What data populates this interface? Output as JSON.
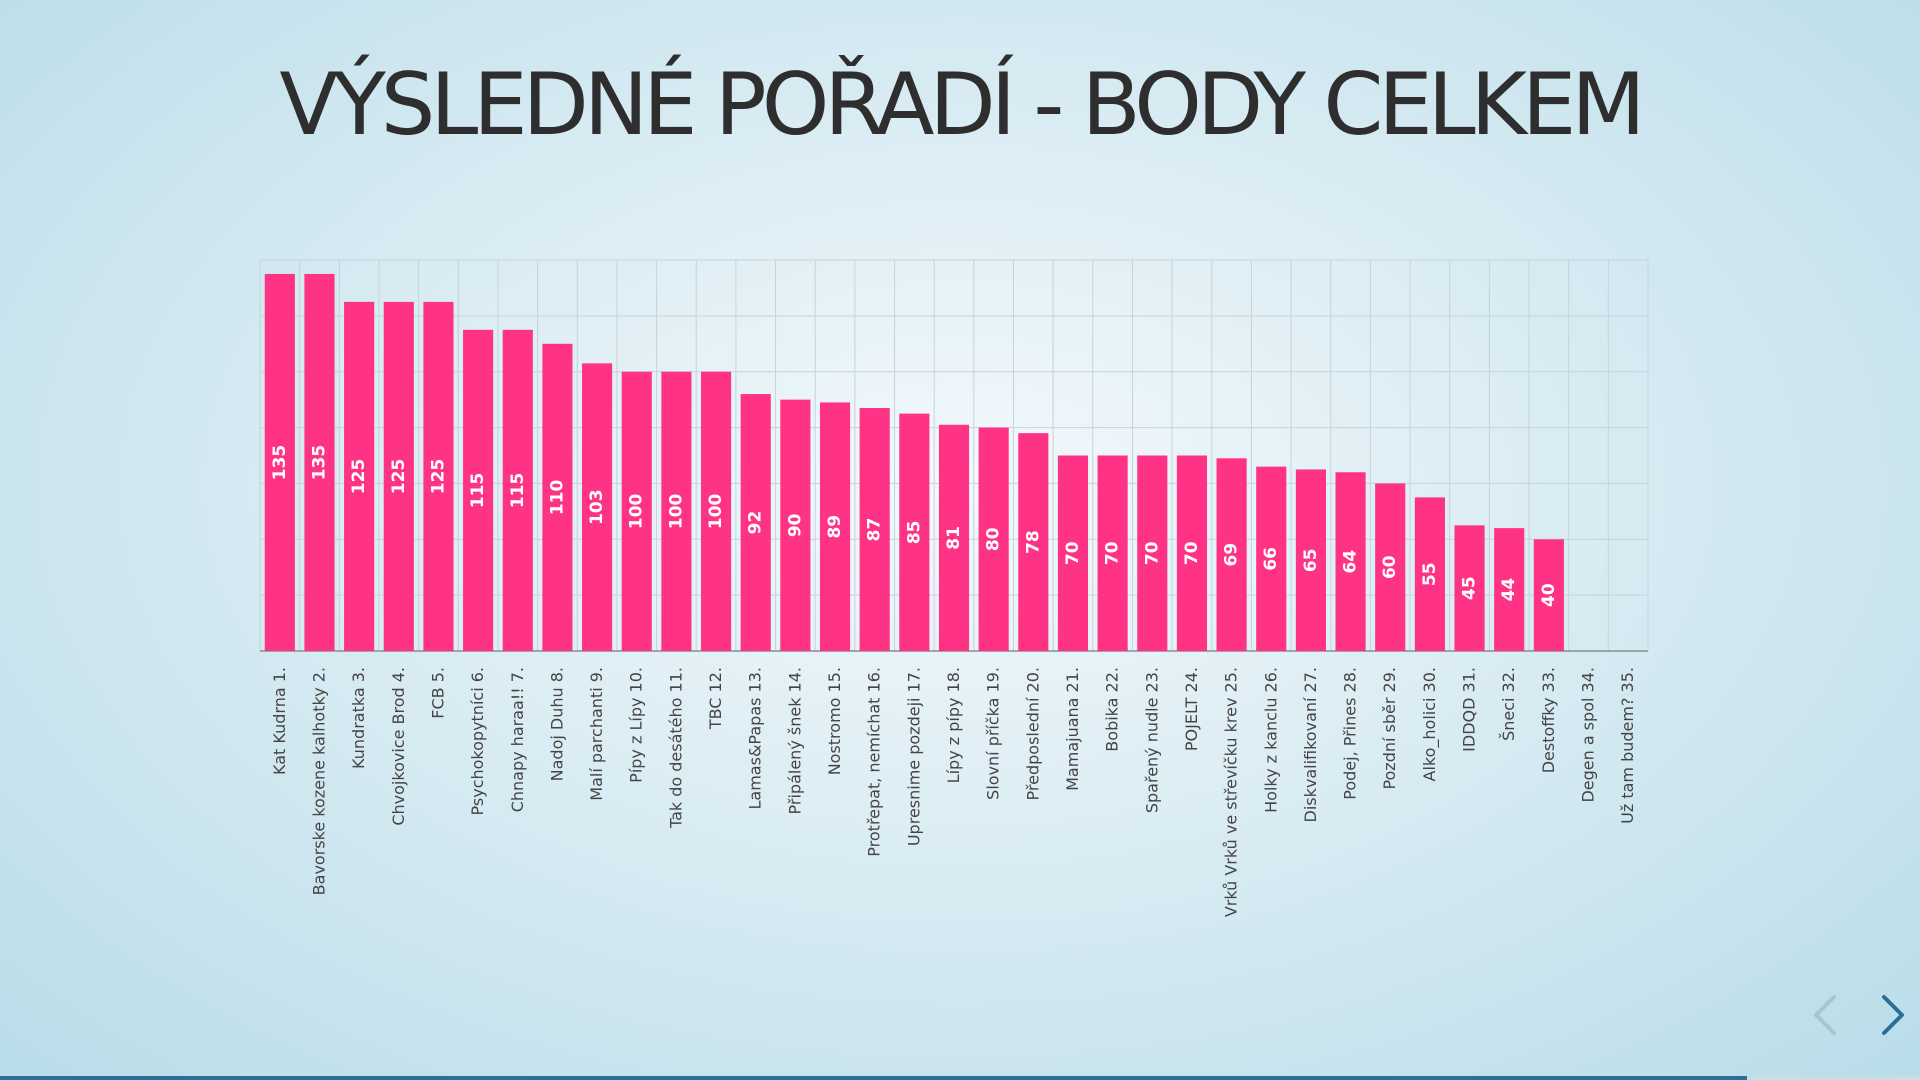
{
  "slide": {
    "title": "VÝSLEDNÉ POŘADÍ - BODY CELKEM",
    "progress": 0.91
  },
  "navigation": {
    "prev_icon": "chevron-left-icon",
    "next_icon": "chevron-right-icon"
  },
  "colors": {
    "bar": "#ff3385",
    "prev_arrow": "#a9c4d4",
    "next_arrow": "#2a6f97"
  },
  "chart_data": {
    "type": "bar",
    "title": "",
    "xlabel": "",
    "ylabel": "",
    "ylim": [
      0,
      140
    ],
    "grid": true,
    "legend": "none",
    "categories": [
      "Kat Kudrna 1.",
      "Bavorske kozene kalhotky 2.",
      "Kundratka 3.",
      "Chvojkovice Brod 4.",
      "FCB 5.",
      "Psychokopytníci 6.",
      "Chnapy haraa!! 7.",
      "Nadoj Duhu 8.",
      "Malí parchanti 9.",
      "Pípy z Lípy 10.",
      "Tak do desátého 11.",
      "TBC 12.",
      "Lamas&Papas 13.",
      "Připálený šnek 14.",
      "Nostromo 15.",
      "Protřepat, nemíchat 16.",
      "Upresnime pozdeji 17.",
      "Lípy z pípy 18.",
      "Slovní příčka 19.",
      "Předposlední 20.",
      "Mamajuana 21.",
      "Bobika 22.",
      "Spařený nudle 23.",
      "POJELT 24.",
      "Vrků Vrků ve střevíčku krev 25.",
      "Holky z kanclu 26.",
      "Diskvalifikovaní 27.",
      "Podej, Přines 28.",
      "Pozdní sběr 29.",
      "Alko_holici 30.",
      "IDDQD 31.",
      "Šneci 32.",
      "Destoffky 33.",
      "Degen a spol 34.",
      "Už tam budem? 35."
    ],
    "values": [
      135,
      135,
      125,
      125,
      125,
      115,
      115,
      110,
      103,
      100,
      100,
      100,
      92,
      90,
      89,
      87,
      85,
      81,
      80,
      78,
      70,
      70,
      70,
      70,
      69,
      66,
      65,
      64,
      60,
      55,
      45,
      44,
      40,
      null,
      null
    ],
    "data_labels": [
      "135",
      "135",
      "125",
      "125",
      "125",
      "115",
      "115",
      "110",
      "103",
      "100",
      "100",
      "100",
      "92",
      "90",
      "89",
      "87",
      "85",
      "81",
      "80",
      "78",
      "70",
      "70",
      "70",
      "70",
      "69",
      "66",
      "65",
      "64",
      "60",
      "55",
      "45",
      "44",
      "40",
      "",
      ""
    ]
  }
}
